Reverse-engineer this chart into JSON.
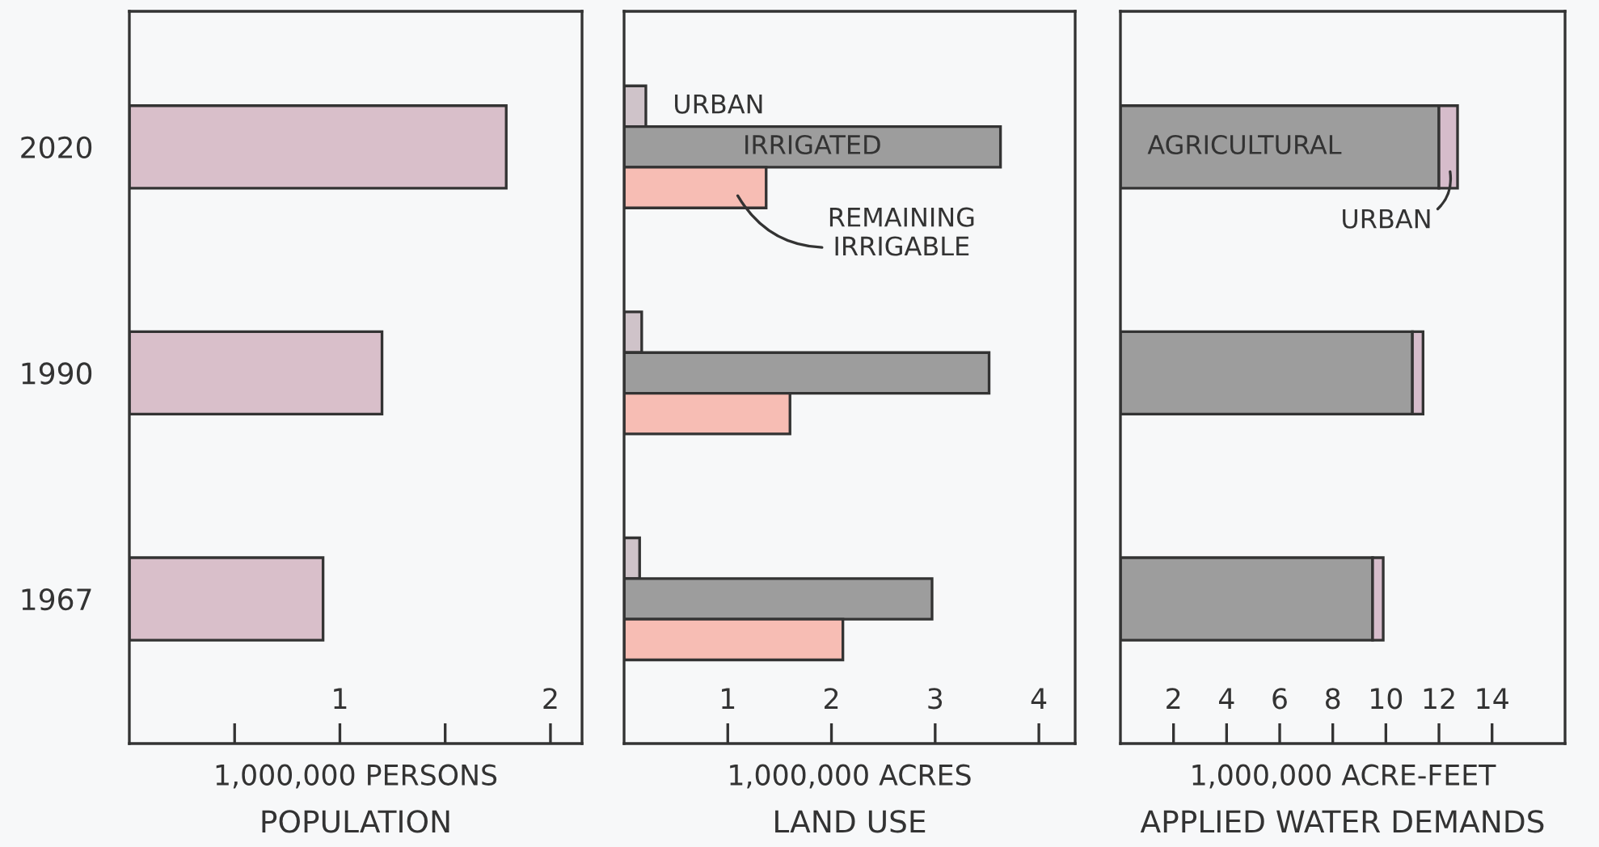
{
  "chart_data": [
    {
      "type": "bar",
      "orientation": "horizontal",
      "title": "POPULATION",
      "xlabel": "1,000,000 PERSONS",
      "categories": [
        "2020",
        "1990",
        "1967"
      ],
      "values": [
        1.79,
        1.2,
        0.92
      ],
      "color": "#d9bfca",
      "xlim": [
        0,
        2.15
      ],
      "xticks": [
        {
          "value": 0.5,
          "label": null
        },
        1,
        {
          "value": 1.5,
          "label": null
        },
        2
      ]
    },
    {
      "type": "bar",
      "orientation": "horizontal",
      "title": "LAND USE",
      "xlabel": "1,000,000 ACRES",
      "categories": [
        "2020",
        "1990",
        "1967"
      ],
      "series": [
        {
          "name": "URBAN",
          "color": "#cfc3c9",
          "values": [
            0.21,
            0.17,
            0.15
          ]
        },
        {
          "name": "IRRIGATED",
          "color": "#9d9d9d",
          "values": [
            3.63,
            3.52,
            2.97
          ]
        },
        {
          "name": "REMAINING\nIRRIGABLE",
          "color": "#f7bdb4",
          "values": [
            1.37,
            1.6,
            2.11
          ]
        }
      ],
      "xlim": [
        0,
        4.35
      ],
      "xticks": [
        1,
        2,
        3,
        4
      ],
      "tick_labels": "x"
    },
    {
      "type": "bar",
      "orientation": "horizontal",
      "stacked": true,
      "title": "APPLIED WATER DEMANDS",
      "xlabel": "1,000,000 ACRE-FEET",
      "categories": [
        "2020",
        "1990",
        "1967"
      ],
      "series": [
        {
          "name": "AGRICULTURAL",
          "color": "#9d9d9d",
          "values": [
            12.0,
            11.0,
            9.5
          ]
        },
        {
          "name": "URBAN",
          "color": "#d6bccb",
          "values": [
            0.7,
            0.4,
            0.4
          ]
        }
      ],
      "xlim": [
        0,
        16.75
      ],
      "xticks": [
        2,
        4,
        6,
        8,
        10,
        12,
        14
      ],
      "tick_labels": "x"
    }
  ]
}
